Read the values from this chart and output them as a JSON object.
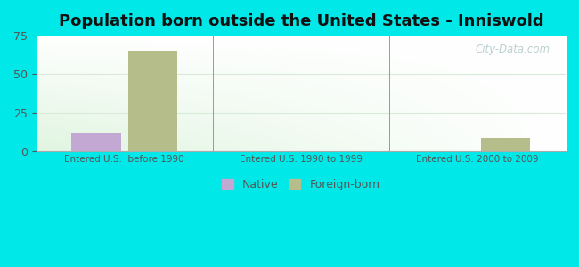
{
  "title": "Population born outside the United States - Inniswold",
  "categories": [
    "Entered U.S.  before 1990",
    "Entered U.S. 1990 to 1999",
    "Entered U.S. 2000 to 2009"
  ],
  "native_values": [
    12,
    0,
    0
  ],
  "foreign_values": [
    65,
    0,
    9
  ],
  "native_color": "#c4a8d4",
  "foreign_color": "#b5be8a",
  "ylim": [
    0,
    75
  ],
  "yticks": [
    0,
    25,
    50,
    75
  ],
  "background_outer": "#00e8e8",
  "title_fontsize": 13,
  "legend_native_label": "Native",
  "legend_foreign_label": "Foreign-born",
  "bar_width": 0.28,
  "grid_color": "#d8ead8",
  "watermark": "City-Data.com",
  "tick_color": "#555555",
  "spine_color": "#aaaaaa"
}
